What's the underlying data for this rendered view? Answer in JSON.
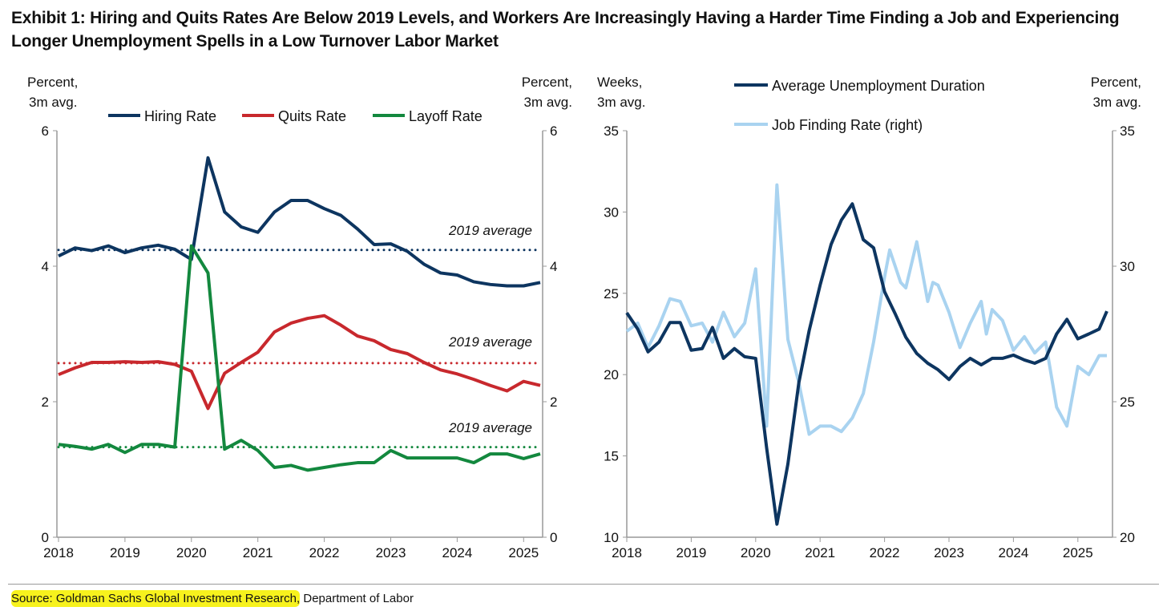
{
  "title": "Exhibit 1: Hiring and Quits Rates Are Below 2019 Levels, and Workers Are Increasingly Having a Harder Time Finding a Job and Experiencing Longer Unemployment Spells in a Low Turnover Labor Market",
  "source": {
    "highlighted": "Source: Goldman Sachs Global Investment Research,",
    "rest": " Department of Labor"
  },
  "chart_data": [
    {
      "type": "line",
      "left_axis_label": [
        "Percent,",
        "3m avg."
      ],
      "right_axis_label": [
        "Percent,",
        "3m avg."
      ],
      "ylim": [
        0,
        6
      ],
      "yticks": [
        0,
        2,
        4,
        6
      ],
      "xlim": [
        2018,
        2025.5
      ],
      "xticks": [
        2018,
        2019,
        2020,
        2021,
        2022,
        2023,
        2024,
        2025
      ],
      "x": [
        2018.0,
        2018.25,
        2018.5,
        2018.75,
        2019.0,
        2019.25,
        2019.5,
        2019.75,
        2020.0,
        2020.25,
        2020.5,
        2020.75,
        2021.0,
        2021.25,
        2021.5,
        2021.75,
        2022.0,
        2022.25,
        2022.5,
        2022.75,
        2023.0,
        2023.25,
        2023.5,
        2023.75,
        2024.0,
        2024.25,
        2024.5,
        2024.75,
        2025.0,
        2025.25
      ],
      "series": [
        {
          "name": "Hiring Rate",
          "color": "#0d3560",
          "values": [
            4.15,
            4.27,
            4.23,
            4.3,
            4.2,
            4.27,
            4.31,
            4.25,
            4.1,
            5.6,
            4.8,
            4.58,
            4.5,
            4.8,
            4.97,
            4.97,
            4.85,
            4.75,
            4.55,
            4.32,
            4.33,
            4.22,
            4.03,
            3.9,
            3.87,
            3.77,
            3.73,
            3.71,
            3.71,
            3.76
          ],
          "avg": 4.24,
          "avg_label": "2019 average"
        },
        {
          "name": "Quits Rate",
          "color": "#c8282d",
          "values": [
            2.4,
            2.5,
            2.58,
            2.58,
            2.59,
            2.58,
            2.59,
            2.55,
            2.45,
            1.9,
            2.42,
            2.58,
            2.73,
            3.03,
            3.16,
            3.23,
            3.27,
            3.13,
            2.97,
            2.9,
            2.77,
            2.71,
            2.58,
            2.47,
            2.41,
            2.33,
            2.24,
            2.16,
            2.3,
            2.24
          ],
          "avg": 2.57,
          "avg_label": "2019 average"
        },
        {
          "name": "Layoff Rate",
          "color": "#13883e",
          "values": [
            1.37,
            1.34,
            1.3,
            1.37,
            1.25,
            1.37,
            1.37,
            1.33,
            4.3,
            3.9,
            1.3,
            1.43,
            1.28,
            1.03,
            1.06,
            0.99,
            1.03,
            1.07,
            1.1,
            1.1,
            1.28,
            1.17,
            1.17,
            1.17,
            1.17,
            1.1,
            1.23,
            1.23,
            1.16,
            1.23
          ],
          "avg": 1.33,
          "avg_label": "2019 average"
        }
      ]
    },
    {
      "type": "line",
      "left_axis_label": [
        "Weeks,",
        "3m avg."
      ],
      "right_axis_label": [
        "Percent,",
        "3m avg."
      ],
      "ylim": [
        10,
        35
      ],
      "yticks": [
        10,
        15,
        20,
        25,
        30,
        35
      ],
      "ylim_right": [
        20,
        35
      ],
      "yticks_right": [
        20,
        25,
        30,
        35
      ],
      "xlim": [
        2018,
        2025.5
      ],
      "xticks": [
        2018,
        2019,
        2020,
        2021,
        2022,
        2023,
        2024,
        2025
      ],
      "series": [
        {
          "name": "Average Unemployment Duration",
          "axis": "left",
          "color": "#0d3560",
          "x": [
            2018.0,
            2018.17,
            2018.33,
            2018.5,
            2018.67,
            2018.83,
            2019.0,
            2019.17,
            2019.33,
            2019.5,
            2019.67,
            2019.83,
            2020.0,
            2020.17,
            2020.33,
            2020.5,
            2020.67,
            2020.83,
            2021.0,
            2021.17,
            2021.33,
            2021.5,
            2021.67,
            2021.83,
            2022.0,
            2022.17,
            2022.33,
            2022.5,
            2022.67,
            2022.83,
            2023.0,
            2023.17,
            2023.33,
            2023.5,
            2023.67,
            2023.83,
            2024.0,
            2024.17,
            2024.33,
            2024.5,
            2024.67,
            2024.83,
            2025.0,
            2025.17,
            2025.33,
            2025.45
          ],
          "values": [
            23.8,
            22.8,
            21.4,
            22.0,
            23.2,
            23.2,
            21.5,
            21.6,
            22.9,
            21.0,
            21.6,
            21.1,
            21.0,
            15.5,
            10.8,
            14.5,
            19.5,
            22.7,
            25.5,
            28.0,
            29.5,
            30.5,
            28.3,
            27.8,
            25.1,
            23.7,
            22.3,
            21.3,
            20.7,
            20.3,
            19.7,
            20.5,
            21.0,
            20.6,
            21.0,
            21.0,
            21.2,
            20.9,
            20.7,
            21.0,
            22.5,
            23.4,
            22.2,
            22.5,
            22.8,
            23.9
          ]
        },
        {
          "name": "Job Finding Rate (right)",
          "axis": "right",
          "color": "#a9d3f0",
          "x": [
            2018.0,
            2018.17,
            2018.33,
            2018.5,
            2018.67,
            2018.83,
            2019.0,
            2019.17,
            2019.33,
            2019.5,
            2019.67,
            2019.83,
            2020.0,
            2020.17,
            2020.33,
            2020.5,
            2020.67,
            2020.83,
            2021.0,
            2021.17,
            2021.33,
            2021.5,
            2021.67,
            2021.83,
            2022.0,
            2022.08,
            2022.25,
            2022.33,
            2022.5,
            2022.67,
            2022.75,
            2022.83,
            2023.0,
            2023.17,
            2023.33,
            2023.5,
            2023.58,
            2023.67,
            2023.83,
            2024.0,
            2024.17,
            2024.33,
            2024.5,
            2024.67,
            2024.83,
            2025.0,
            2025.17,
            2025.33,
            2025.45
          ],
          "values": [
            27.6,
            27.9,
            27.0,
            27.8,
            28.8,
            28.7,
            27.8,
            27.9,
            27.2,
            28.3,
            27.4,
            27.9,
            29.9,
            24.1,
            33.0,
            27.3,
            25.7,
            23.8,
            24.1,
            24.1,
            23.9,
            24.4,
            25.3,
            27.2,
            29.6,
            30.6,
            29.4,
            29.2,
            30.9,
            28.7,
            29.4,
            29.3,
            28.3,
            27.0,
            27.9,
            28.7,
            27.5,
            28.4,
            28.0,
            26.9,
            27.4,
            26.8,
            27.2,
            24.8,
            24.1,
            26.3,
            26.0,
            26.7,
            26.7
          ]
        }
      ]
    }
  ]
}
